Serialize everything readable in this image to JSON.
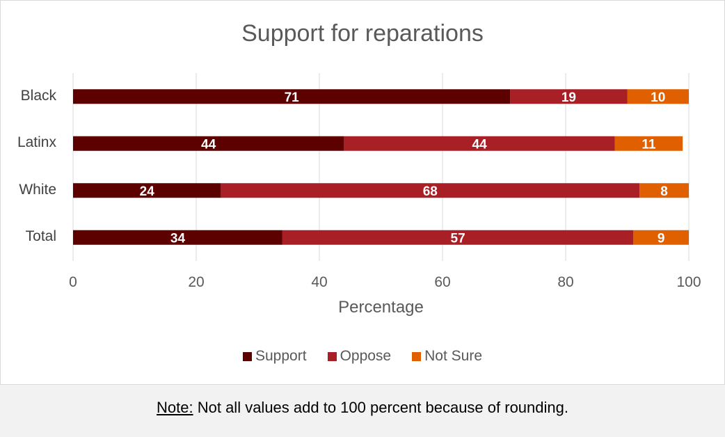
{
  "chart_data": {
    "type": "bar",
    "orientation": "horizontal",
    "stacked": true,
    "title": "Support for reparations",
    "xlabel": "Percentage",
    "ylabel": "",
    "xlim": [
      0,
      100
    ],
    "xticks": [
      0,
      20,
      40,
      60,
      80,
      100
    ],
    "categories": [
      "Black",
      "Latinx",
      "White",
      "Total"
    ],
    "series": [
      {
        "name": "Support",
        "color": "#5c0000",
        "values": [
          71,
          44,
          24,
          34
        ]
      },
      {
        "name": "Oppose",
        "color": "#a91f26",
        "values": [
          19,
          44,
          68,
          57
        ]
      },
      {
        "name": "Not Sure",
        "color": "#e06000",
        "values": [
          10,
          11,
          8,
          9
        ]
      }
    ],
    "grid": "vertical",
    "legend_position": "bottom"
  },
  "note": {
    "label": "Note:",
    "text": " Not all values add to 100 percent because of rounding."
  }
}
